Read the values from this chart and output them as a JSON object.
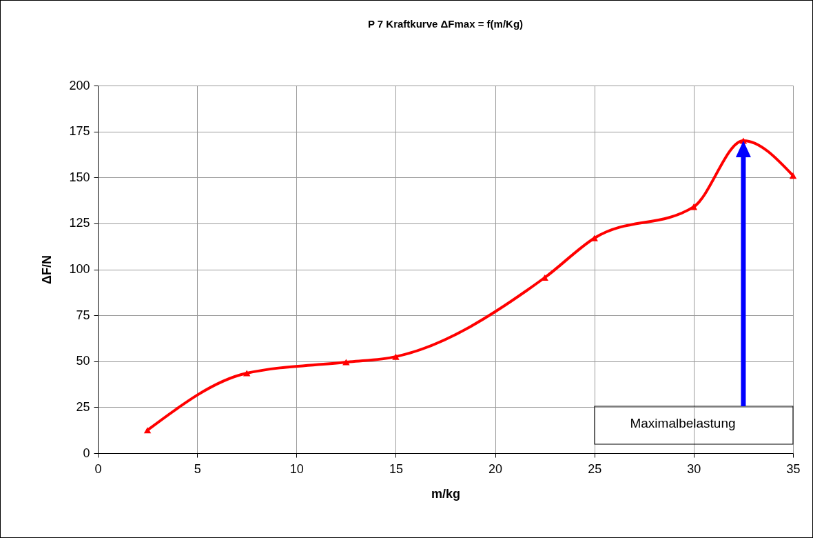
{
  "chart_data": {
    "type": "line",
    "title": "P 7 Kraftkurve ΔFmax = f(m/Kg)",
    "xlabel": "m/kg",
    "ylabel": "ΔF/N",
    "x": [
      2.5,
      7.5,
      12.5,
      15,
      22.5,
      25,
      30,
      32.5,
      35
    ],
    "series": [
      {
        "color": "#ff0000",
        "values": [
          12.5,
          43.5,
          49.5,
          52.5,
          95.5,
          117,
          134,
          170,
          151
        ]
      }
    ],
    "xlim": [
      0,
      35
    ],
    "xticks": [
      0,
      5,
      10,
      15,
      20,
      25,
      30,
      35
    ],
    "ylim": [
      0,
      200
    ],
    "yticks": [
      0,
      25,
      50,
      75,
      100,
      125,
      150,
      175,
      200
    ],
    "grid": true,
    "marker": "triangle",
    "line_style": "solid",
    "annotations": [
      "Maximalbelastung"
    ]
  }
}
